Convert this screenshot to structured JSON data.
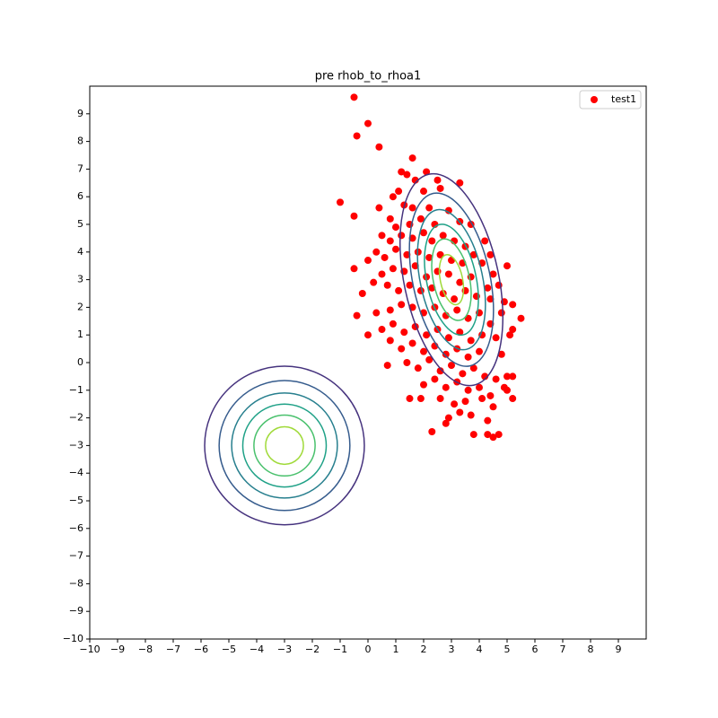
{
  "chart_data": {
    "type": "scatter",
    "title": "pre rhob_to_rhoa1",
    "xlim": [
      -10,
      10
    ],
    "ylim": [
      -10,
      10
    ],
    "xticks": [
      {
        "value": -10,
        "label": "−10"
      },
      {
        "value": -9,
        "label": "−9"
      },
      {
        "value": -8,
        "label": "−8"
      },
      {
        "value": -7,
        "label": "−7"
      },
      {
        "value": -6,
        "label": "−6"
      },
      {
        "value": -5,
        "label": "−5"
      },
      {
        "value": -4,
        "label": "−4"
      },
      {
        "value": -3,
        "label": "−3"
      },
      {
        "value": -2,
        "label": "−2"
      },
      {
        "value": -1,
        "label": "−1"
      },
      0,
      1,
      2,
      3,
      4,
      5,
      6,
      7,
      8,
      9
    ],
    "yticks": [
      {
        "value": -10,
        "label": "−10"
      },
      {
        "value": -9,
        "label": "−9"
      },
      {
        "value": -8,
        "label": "−8"
      },
      {
        "value": -7,
        "label": "−7"
      },
      {
        "value": -6,
        "label": "−6"
      },
      {
        "value": -5,
        "label": "−5"
      },
      {
        "value": -4,
        "label": "−4"
      },
      {
        "value": -3,
        "label": "−3"
      },
      {
        "value": -2,
        "label": "−2"
      },
      {
        "value": -1,
        "label": "−1"
      },
      0,
      1,
      2,
      3,
      4,
      5,
      6,
      7,
      8,
      9
    ],
    "legend": "upper right",
    "series": [
      {
        "name": "test1",
        "color": "#ff0000",
        "x": [
          -0.5,
          0.0,
          -0.4,
          0.4,
          1.6,
          2.1,
          -1.0,
          -0.5,
          -0.5,
          -0.2,
          -0.4,
          5.5,
          5.2,
          5.0,
          4.5,
          4.7,
          2.3,
          3.8,
          5.2,
          0.7,
          1.5,
          4.3,
          5.0,
          1.2,
          1.4,
          1.7,
          2.0,
          1.1,
          0.9,
          1.3,
          2.5,
          2.6,
          3.3,
          0.4,
          0.8,
          1.6,
          2.2,
          1.0,
          1.5,
          1.9,
          2.4,
          2.9,
          3.3,
          3.7,
          0.5,
          0.8,
          1.2,
          1.6,
          2.0,
          2.3,
          2.7,
          3.1,
          3.5,
          4.2,
          0.3,
          0.6,
          1.0,
          1.4,
          1.8,
          2.2,
          2.6,
          3.0,
          3.4,
          3.8,
          4.1,
          4.4,
          0.0,
          0.5,
          0.9,
          1.3,
          1.7,
          2.1,
          2.5,
          2.9,
          3.3,
          3.7,
          4.5,
          0.2,
          0.7,
          1.1,
          1.5,
          1.9,
          2.3,
          2.7,
          3.1,
          3.5,
          3.9,
          4.3,
          4.7,
          0.3,
          0.8,
          1.2,
          1.6,
          2.0,
          2.4,
          2.8,
          3.2,
          3.6,
          4.0,
          4.4,
          4.8,
          0.0,
          0.5,
          0.9,
          1.3,
          1.7,
          2.1,
          2.5,
          2.9,
          3.3,
          3.7,
          4.1,
          4.6,
          5.1,
          0.8,
          1.2,
          1.6,
          2.0,
          2.4,
          2.8,
          3.2,
          3.6,
          4.0,
          4.8,
          1.4,
          1.8,
          2.2,
          2.6,
          3.0,
          3.4,
          3.8,
          4.2,
          4.6,
          2.0,
          2.4,
          2.8,
          3.2,
          3.6,
          4.0,
          4.4,
          4.9,
          1.9,
          2.6,
          3.1,
          3.5,
          4.1,
          4.5,
          3.3,
          2.9,
          3.7,
          4.3,
          2.8,
          5.0,
          5.2,
          4.9,
          5.2,
          4.4
        ],
        "y": [
          9.6,
          8.65,
          8.2,
          7.8,
          7.4,
          6.9,
          5.8,
          5.3,
          3.4,
          2.5,
          1.7,
          1.6,
          1.2,
          3.5,
          -2.7,
          -2.6,
          -2.5,
          -2.6,
          -1.3,
          -0.1,
          -1.3,
          -2.6,
          -0.5,
          6.9,
          6.8,
          6.6,
          6.2,
          6.2,
          6.0,
          5.7,
          6.6,
          6.3,
          6.5,
          5.6,
          5.2,
          5.6,
          5.6,
          4.9,
          5.0,
          5.2,
          5.0,
          5.5,
          5.1,
          5.0,
          4.6,
          4.4,
          4.6,
          4.5,
          4.7,
          4.4,
          4.6,
          4.4,
          4.2,
          4.4,
          4.0,
          3.8,
          4.1,
          3.9,
          4.0,
          3.8,
          3.9,
          3.7,
          3.6,
          3.9,
          3.6,
          3.9,
          3.7,
          3.2,
          3.4,
          3.3,
          3.5,
          3.1,
          3.3,
          3.2,
          2.9,
          3.1,
          3.2,
          2.9,
          2.8,
          2.6,
          2.8,
          2.6,
          2.7,
          2.5,
          2.3,
          2.6,
          2.4,
          2.7,
          2.8,
          1.8,
          1.9,
          2.1,
          2.0,
          1.8,
          2.0,
          1.7,
          1.9,
          1.6,
          1.8,
          1.4,
          1.8,
          1.0,
          1.2,
          1.4,
          1.1,
          1.3,
          1.0,
          1.2,
          0.9,
          1.1,
          0.8,
          1.0,
          0.9,
          1.0,
          0.8,
          0.5,
          0.7,
          0.4,
          0.6,
          0.3,
          0.5,
          0.2,
          0.4,
          0.3,
          0.0,
          -0.2,
          0.1,
          -0.3,
          -0.1,
          -0.4,
          -0.2,
          -0.5,
          -0.6,
          -0.8,
          -0.6,
          -0.9,
          -0.7,
          -1.0,
          -0.9,
          -1.2,
          -0.9,
          -1.3,
          -1.3,
          -1.5,
          -1.4,
          -1.3,
          -1.6,
          -1.8,
          -2.0,
          -1.9,
          -2.1,
          -2.2,
          -1.0,
          -0.5,
          2.2,
          2.1,
          2.3
        ]
      }
    ],
    "contours": [
      {
        "cx": -3,
        "cy": -3,
        "rx": 2.87,
        "ry": 2.87,
        "angle": 0,
        "color": "#46337e"
      },
      {
        "cx": -3,
        "cy": -3,
        "rx": 2.35,
        "ry": 2.35,
        "angle": 0,
        "color": "#365c8d"
      },
      {
        "cx": -3,
        "cy": -3,
        "rx": 1.9,
        "ry": 1.9,
        "angle": 0,
        "color": "#277f8e"
      },
      {
        "cx": -3,
        "cy": -3,
        "rx": 1.5,
        "ry": 1.5,
        "angle": 0,
        "color": "#1fa187"
      },
      {
        "cx": -3,
        "cy": -3,
        "rx": 1.1,
        "ry": 1.1,
        "angle": 0,
        "color": "#4ac16d"
      },
      {
        "cx": -3,
        "cy": -3,
        "rx": 0.68,
        "ry": 0.68,
        "angle": 0,
        "color": "#a0da39"
      },
      {
        "cx": 3.0,
        "cy": 3.0,
        "rx": 1.7,
        "ry": 3.9,
        "angle": 12,
        "color": "#46337e"
      },
      {
        "cx": 3.0,
        "cy": 3.0,
        "rx": 1.39,
        "ry": 3.19,
        "angle": 12,
        "color": "#365c8d"
      },
      {
        "cx": 3.0,
        "cy": 3.0,
        "rx": 1.12,
        "ry": 2.58,
        "angle": 12,
        "color": "#277f8e"
      },
      {
        "cx": 3.0,
        "cy": 3.0,
        "rx": 0.89,
        "ry": 2.04,
        "angle": 12,
        "color": "#1fa187"
      },
      {
        "cx": 3.0,
        "cy": 3.0,
        "rx": 0.65,
        "ry": 1.5,
        "angle": 12,
        "color": "#4ac16d"
      },
      {
        "cx": 3.0,
        "cy": 3.0,
        "rx": 0.4,
        "ry": 0.92,
        "angle": 12,
        "color": "#a0da39"
      }
    ]
  }
}
